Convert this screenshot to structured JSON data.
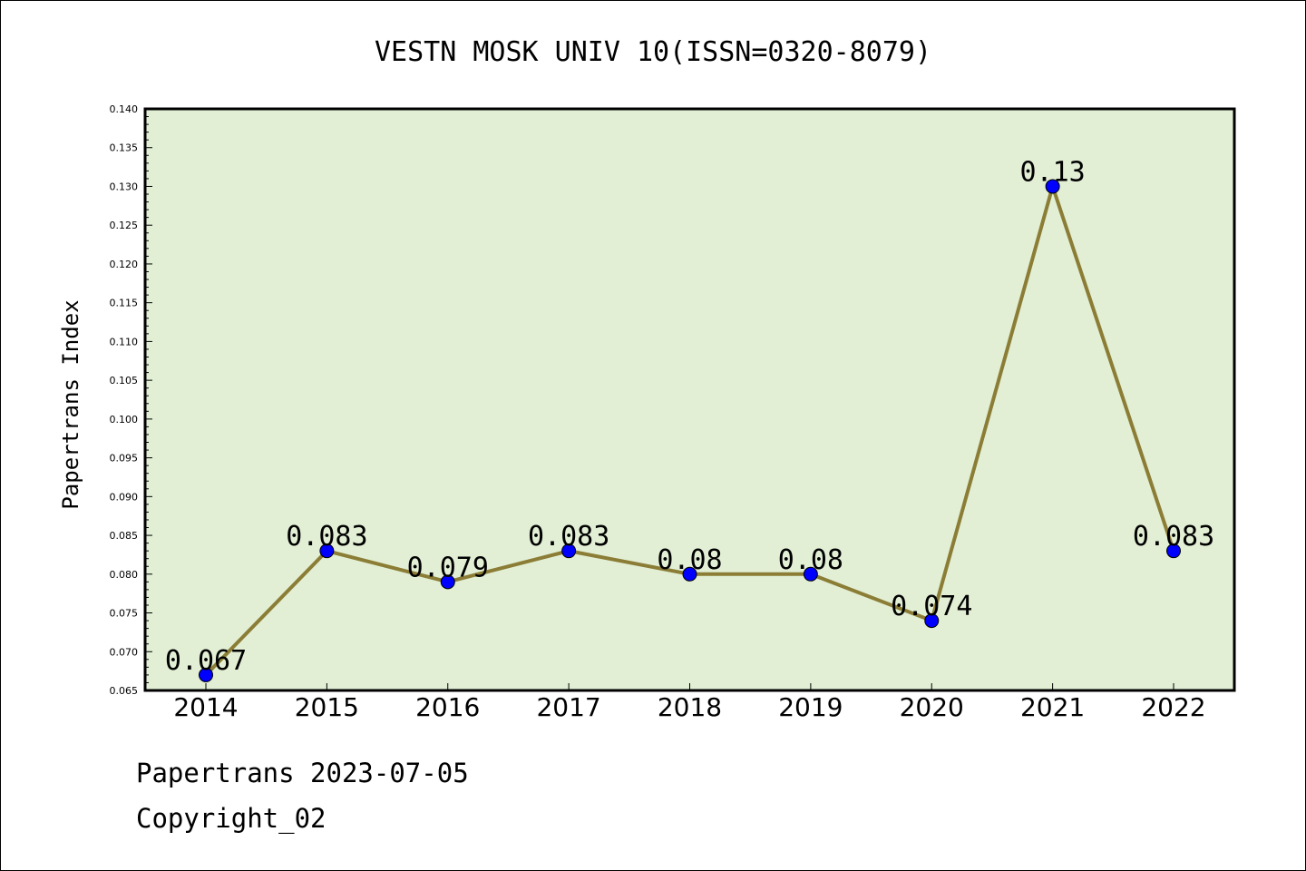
{
  "colors": {
    "plot_background": "#e2efd5",
    "line": "#8b7d35",
    "marker": "#0000ff",
    "axis": "#000000"
  },
  "footer": {
    "line1": "Papertrans 2023-07-05",
    "line2": "Copyright_02"
  },
  "chart_data": {
    "type": "line",
    "title": "VESTN MOSK UNIV 10(ISSN=0320-8079)",
    "xlabel": "",
    "ylabel": "Papertrans Index",
    "categories": [
      "2014",
      "2015",
      "2016",
      "2017",
      "2018",
      "2019",
      "2020",
      "2021",
      "2022"
    ],
    "series": [
      {
        "values": [
          0.067,
          0.083,
          0.079,
          0.083,
          0.08,
          0.08,
          0.074,
          0.13,
          0.083
        ],
        "labels": [
          "0.067",
          "0.083",
          "0.079",
          "0.083",
          "0.08",
          "0.08",
          "0.074",
          "0.13",
          "0.083"
        ]
      }
    ],
    "ylim": [
      0.065,
      0.14
    ],
    "yticks": [
      "0.065",
      "0.070",
      "0.075",
      "0.080",
      "0.085",
      "0.090",
      "0.095",
      "0.100",
      "0.105",
      "0.110",
      "0.115",
      "0.120",
      "0.125",
      "0.130",
      "0.135",
      "0.140"
    ],
    "grid": false,
    "legend": "none"
  }
}
